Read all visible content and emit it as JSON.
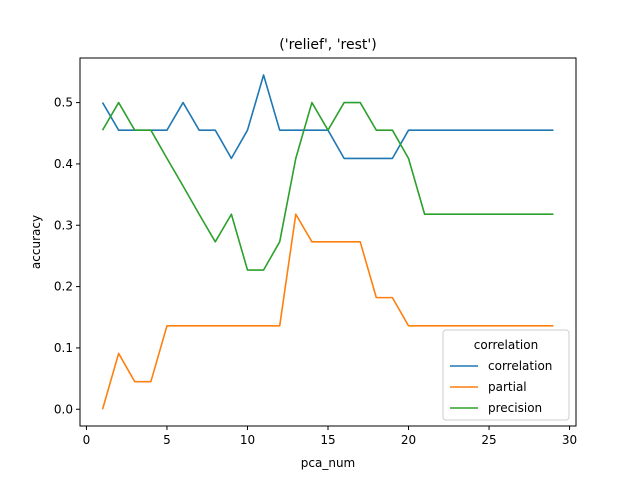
{
  "chart_data": {
    "type": "line",
    "title": "('relief', 'rest')",
    "xlabel": "pca_num",
    "ylabel": "accuracy",
    "xlim": [
      -0.4,
      30.4
    ],
    "ylim": [
      -0.0273,
      0.5727
    ],
    "xticks": [
      0,
      5,
      10,
      15,
      20,
      25,
      30
    ],
    "yticks": [
      0.0,
      0.1,
      0.2,
      0.3,
      0.4,
      0.5
    ],
    "xtick_labels": [
      "0",
      "5",
      "10",
      "15",
      "20",
      "25",
      "30"
    ],
    "ytick_labels": [
      "0.0",
      "0.1",
      "0.2",
      "0.3",
      "0.4",
      "0.5"
    ],
    "grid": false,
    "legend": {
      "title": "correlation",
      "placement": "lower right"
    },
    "x": [
      1,
      2,
      3,
      4,
      5,
      6,
      7,
      8,
      9,
      10,
      11,
      12,
      13,
      14,
      15,
      16,
      17,
      18,
      19,
      20,
      21,
      22,
      23,
      24,
      25,
      26,
      27,
      28,
      29
    ],
    "series": [
      {
        "name": "correlation",
        "color": "#1f77b4",
        "values": [
          0.5,
          0.455,
          0.455,
          0.455,
          0.455,
          0.5,
          0.455,
          0.455,
          0.409,
          0.455,
          0.545,
          0.455,
          0.455,
          0.455,
          0.455,
          0.409,
          0.409,
          0.409,
          0.409,
          0.455,
          0.455,
          0.455,
          0.455,
          0.455,
          0.455,
          0.455,
          0.455,
          0.455,
          0.455
        ]
      },
      {
        "name": "partial",
        "color": "#ff7f0e",
        "values": [
          0.0,
          0.091,
          0.045,
          0.045,
          0.136,
          0.136,
          0.136,
          0.136,
          0.136,
          0.136,
          0.136,
          0.136,
          0.318,
          0.273,
          0.273,
          0.273,
          0.273,
          0.182,
          0.182,
          0.136,
          0.136,
          0.136,
          0.136,
          0.136,
          0.136,
          0.136,
          0.136,
          0.136,
          0.136
        ]
      },
      {
        "name": "precision",
        "color": "#2ca02c",
        "values": [
          0.455,
          0.5,
          0.455,
          0.455,
          0.409,
          0.364,
          0.318,
          0.273,
          0.318,
          0.227,
          0.227,
          0.273,
          0.409,
          0.5,
          0.455,
          0.5,
          0.5,
          0.455,
          0.455,
          0.409,
          0.318,
          0.318,
          0.318,
          0.318,
          0.318,
          0.318,
          0.318,
          0.318,
          0.318
        ]
      }
    ]
  }
}
